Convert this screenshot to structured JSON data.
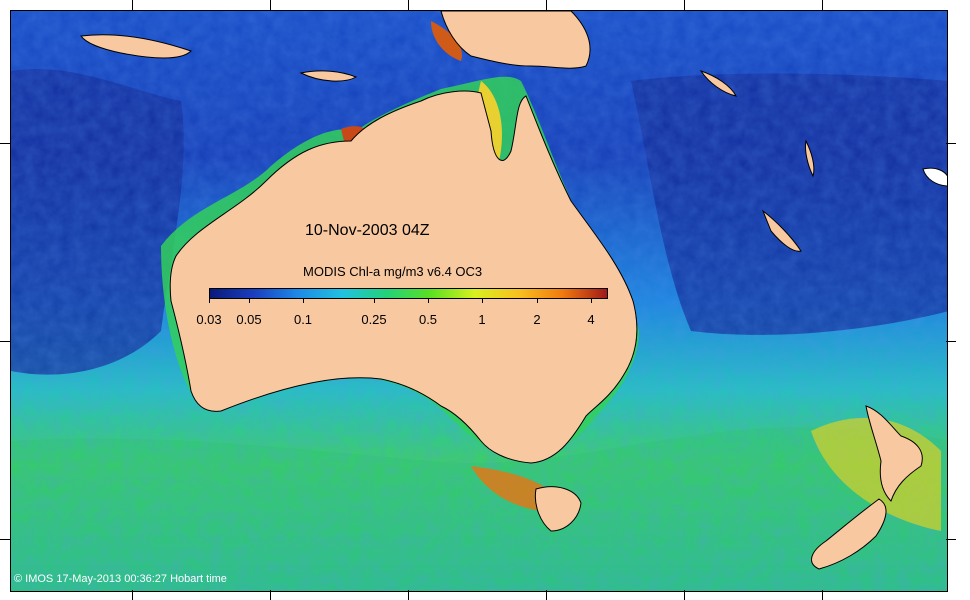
{
  "map": {
    "date_label": "10-Nov-2003 04Z",
    "colorbar": {
      "title": "MODIS Chl-a mg/m3 v6.4 OC3",
      "ticks": [
        "0.03",
        "0.05",
        "0.1",
        "0.25",
        "0.5",
        "1",
        "2",
        "4"
      ],
      "tick_values": [
        0.03,
        0.05,
        0.1,
        0.25,
        0.5,
        1,
        2,
        4
      ],
      "range": [
        0.03,
        5
      ],
      "scale": "log",
      "colors": [
        "#0a1a7a",
        "#1a3fc0",
        "#1e8ae6",
        "#21c2e0",
        "#22d27a",
        "#5be022",
        "#d8f020",
        "#f8c020",
        "#f07a10",
        "#a01818"
      ]
    },
    "credit": "© IMOS 17-May-2013 00:36:27 Hobart time",
    "colors": {
      "land": "#f8c8a0",
      "ocean_oligotrophic": "#1a3fc0",
      "ocean_mid": "#21b6e6",
      "ocean_high": "#3ed65a",
      "coastline": "#000000"
    }
  }
}
